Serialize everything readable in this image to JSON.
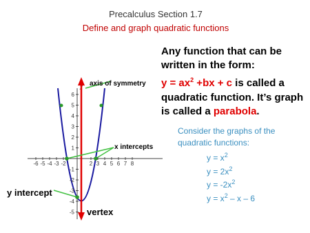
{
  "header": {
    "title": "Precalculus Section 1.7",
    "subtitle": "Define and graph quadratic functions"
  },
  "intro": "Any function that can be written in the form:",
  "definition": {
    "lead": "y = ax",
    "exp": "2",
    "rest": " +bx + c",
    "middle": " is called a quadratic function.  It’s graph is called a ",
    "term": "parabola",
    "end": "."
  },
  "consider": "Consider the graphs of the quadratic functions:",
  "equations": [
    {
      "base": "y = x",
      "exp": "2"
    },
    {
      "base": "y = 2x",
      "exp": "2"
    },
    {
      "base": "y = -2x",
      "exp": "2"
    },
    {
      "base": "y = x",
      "exp": "2",
      "rest": " – x – 6"
    }
  ],
  "graph": {
    "y_label": "y",
    "x_ticks": [
      -6,
      -5,
      -4,
      -3,
      -2,
      2,
      3,
      4,
      5,
      6,
      7,
      8
    ],
    "y_ticks": [
      6,
      5,
      4,
      3,
      2,
      1,
      -1,
      -2,
      -3,
      -4,
      -5
    ],
    "annotations": {
      "axis": "axis of symmetry",
      "x_int": "x intercepts",
      "y_int": "y intercept",
      "vertex": "vertex"
    }
  }
}
